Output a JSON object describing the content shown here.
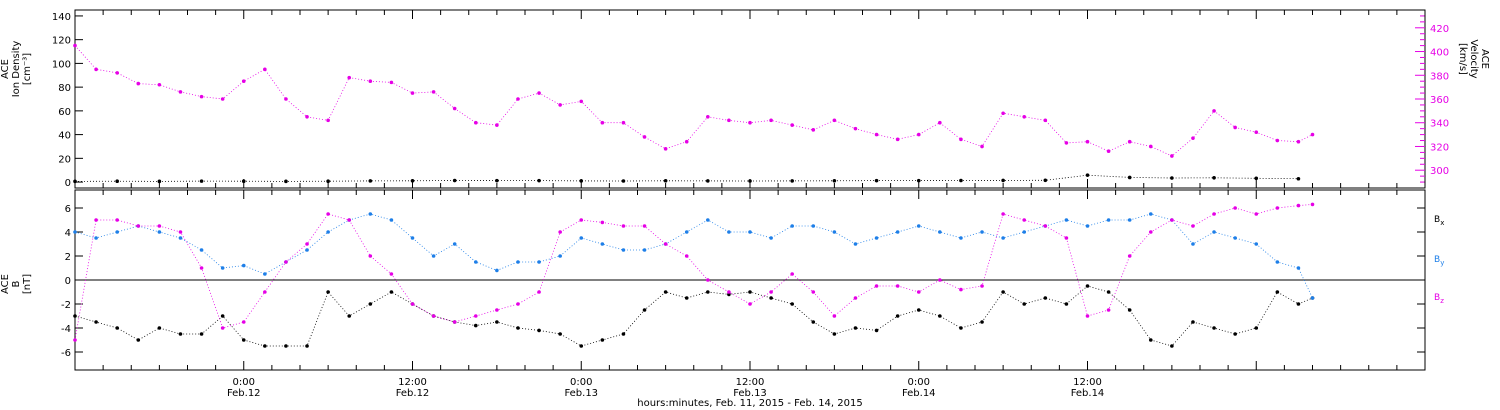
{
  "chart_data": [
    {
      "type": "scatter",
      "title": "",
      "ylabel_lines": [
        "ACE",
        "Ion Density",
        "[cm⁻³]"
      ],
      "y2label_lines": [
        "ACE",
        "Velocity",
        "[km/s]"
      ],
      "ylim": [
        -5,
        145
      ],
      "yticks": [
        0,
        20,
        40,
        60,
        80,
        100,
        120,
        140
      ],
      "y2lim": [
        285,
        435
      ],
      "y2ticks": [
        300,
        320,
        340,
        360,
        380,
        400,
        420
      ],
      "series": [
        {
          "axis": "left",
          "color": "#000000",
          "x_hours": [
            0,
            3,
            6,
            9,
            12,
            15,
            18,
            21,
            24,
            27,
            30,
            33,
            36,
            39,
            42,
            45,
            48,
            51,
            54,
            57,
            60,
            63,
            66,
            69,
            72,
            75,
            78,
            81,
            84,
            87
          ],
          "values": [
            0.6,
            0.7,
            0.6,
            0.8,
            0.7,
            0.6,
            0.7,
            1.0,
            1.1,
            1.3,
            1.2,
            1.2,
            1.0,
            0.9,
            1.1,
            1.0,
            0.9,
            1.0,
            1.1,
            1.2,
            1.2,
            1.3,
            1.4,
            1.5,
            5.8,
            3.9,
            3.4,
            3.6,
            3.2,
            2.8
          ]
        },
        {
          "axis": "right",
          "color": "#e600e6",
          "x_hours": [
            0,
            1.5,
            3,
            4.5,
            6,
            7.5,
            9,
            10.5,
            12,
            13.5,
            15,
            16.5,
            18,
            19.5,
            21,
            22.5,
            24,
            25.5,
            27,
            28.5,
            30,
            31.5,
            33,
            34.5,
            36,
            37.5,
            39,
            40.5,
            42,
            43.5,
            45,
            46.5,
            48,
            49.5,
            51,
            52.5,
            54,
            55.5,
            57,
            58.5,
            60,
            61.5,
            63,
            64.5,
            66,
            67.5,
            69,
            70.5,
            72,
            73.5,
            75,
            76.5,
            78,
            79.5,
            81,
            82.5,
            84,
            85.5,
            87,
            88
          ],
          "values": [
            405,
            385,
            382,
            373,
            372,
            366,
            362,
            360,
            375,
            385,
            360,
            345,
            342,
            378,
            375,
            374,
            365,
            366,
            352,
            340,
            338,
            360,
            365,
            355,
            358,
            340,
            340,
            328,
            318,
            324,
            345,
            342,
            340,
            342,
            338,
            334,
            342,
            335,
            330,
            326,
            330,
            340,
            326,
            320,
            348,
            345,
            342,
            323,
            324,
            316,
            324,
            320,
            312,
            327,
            350,
            336,
            332,
            325,
            324,
            330
          ]
        }
      ]
    },
    {
      "type": "scatter",
      "title": "",
      "ylabel_lines": [
        "ACE",
        "B",
        "[nT]"
      ],
      "ylim": [
        -7.5,
        7.5
      ],
      "yticks": [
        -6,
        -4,
        -2,
        0,
        2,
        4,
        6
      ],
      "zero_line": true,
      "series": [
        {
          "name": "Bx",
          "color": "#000000",
          "x_hours": [
            0,
            1.5,
            3,
            4.5,
            6,
            7.5,
            9,
            10.5,
            12,
            13.5,
            15,
            16.5,
            18,
            19.5,
            21,
            22.5,
            24,
            25.5,
            27,
            28.5,
            30,
            31.5,
            33,
            34.5,
            36,
            37.5,
            39,
            40.5,
            42,
            43.5,
            45,
            46.5,
            48,
            49.5,
            51,
            52.5,
            54,
            55.5,
            57,
            58.5,
            60,
            61.5,
            63,
            64.5,
            66,
            67.5,
            69,
            70.5,
            72,
            73.5,
            75,
            76.5,
            78,
            79.5,
            81,
            82.5,
            84,
            85.5,
            87,
            88
          ],
          "values": [
            -3,
            -3.5,
            -4,
            -5,
            -4,
            -4.5,
            -4.5,
            -3,
            -5,
            -5.5,
            -5.5,
            -5.5,
            -1,
            -3,
            -2,
            -1,
            -2,
            -3,
            -3.5,
            -3.8,
            -3.5,
            -4,
            -4.2,
            -4.5,
            -5.5,
            -5,
            -4.5,
            -2.5,
            -1,
            -1.5,
            -1,
            -1.2,
            -1,
            -1.5,
            -2,
            -3.5,
            -4.5,
            -4,
            -4.2,
            -3,
            -2.5,
            -3,
            -4,
            -3.5,
            -1,
            -2,
            -1.5,
            -2,
            -0.5,
            -1,
            -2.5,
            -5,
            -5.5,
            -3.5,
            -4,
            -4.5,
            -4,
            -1,
            -2,
            -1.5
          ]
        },
        {
          "name": "By",
          "color": "#1e7fe8",
          "x_hours": [
            0,
            1.5,
            3,
            4.5,
            6,
            7.5,
            9,
            10.5,
            12,
            13.5,
            15,
            16.5,
            18,
            19.5,
            21,
            22.5,
            24,
            25.5,
            27,
            28.5,
            30,
            31.5,
            33,
            34.5,
            36,
            37.5,
            39,
            40.5,
            42,
            43.5,
            45,
            46.5,
            48,
            49.5,
            51,
            52.5,
            54,
            55.5,
            57,
            58.5,
            60,
            61.5,
            63,
            64.5,
            66,
            67.5,
            69,
            70.5,
            72,
            73.5,
            75,
            76.5,
            78,
            79.5,
            81,
            82.5,
            84,
            85.5,
            87,
            88
          ],
          "values": [
            4,
            3.5,
            4,
            4.5,
            4,
            3.5,
            2.5,
            1,
            1.2,
            0.5,
            1.5,
            2.5,
            4,
            5,
            5.5,
            5,
            3.5,
            2,
            3,
            1.5,
            0.8,
            1.5,
            1.5,
            2,
            3.5,
            3,
            2.5,
            2.5,
            3,
            4,
            5,
            4,
            4,
            3.5,
            4.5,
            4.5,
            4,
            3,
            3.5,
            4,
            4.5,
            4,
            3.5,
            4,
            3.5,
            4,
            4.5,
            5,
            4.5,
            5,
            5,
            5.5,
            5,
            3,
            4,
            3.5,
            3,
            1.5,
            1,
            -1.5
          ]
        },
        {
          "name": "Bz",
          "color": "#e600e6",
          "x_hours": [
            0,
            1.5,
            3,
            4.5,
            6,
            7.5,
            9,
            10.5,
            12,
            13.5,
            15,
            16.5,
            18,
            19.5,
            21,
            22.5,
            24,
            25.5,
            27,
            28.5,
            30,
            31.5,
            33,
            34.5,
            36,
            37.5,
            39,
            40.5,
            42,
            43.5,
            45,
            46.5,
            48,
            49.5,
            51,
            52.5,
            54,
            55.5,
            57,
            58.5,
            60,
            61.5,
            63,
            64.5,
            66,
            67.5,
            69,
            70.5,
            72,
            73.5,
            75,
            76.5,
            78,
            79.5,
            81,
            82.5,
            84,
            85.5,
            87,
            88
          ],
          "values": [
            -5,
            5,
            5,
            4.5,
            4.5,
            4,
            1,
            -4,
            -3.5,
            -1,
            1.5,
            3,
            5.5,
            5,
            2,
            0.5,
            -2,
            -3,
            -3.5,
            -3,
            -2.5,
            -2,
            -1,
            4,
            5,
            4.8,
            4.5,
            4.5,
            3,
            2,
            0,
            -1,
            -2,
            -1,
            0.5,
            -1,
            -3,
            -1.5,
            -0.5,
            -0.5,
            -1,
            0,
            -0.8,
            -0.5,
            5.5,
            5,
            4.5,
            3.5,
            -3,
            -2.5,
            2,
            4,
            5,
            4.5,
            5.5,
            6,
            5.5,
            6,
            6.2,
            6.3
          ]
        }
      ]
    }
  ],
  "time_axis": {
    "x_range_hours": [
      0,
      96
    ],
    "major_ticks": [
      {
        "hour": 12,
        "time": "0:00",
        "date": "Feb.12"
      },
      {
        "hour": 24,
        "time": "12:00",
        "date": "Feb.12"
      },
      {
        "hour": 36,
        "time": "0:00",
        "date": "Feb.13"
      },
      {
        "hour": 48,
        "time": "12:00",
        "date": "Feb.13"
      },
      {
        "hour": 60,
        "time": "0:00",
        "date": "Feb.14"
      },
      {
        "hour": 72,
        "time": "12:00",
        "date": "Feb.14"
      }
    ],
    "xlabel": "hours:minutes, Feb. 11, 2015 - Feb. 14, 2015"
  },
  "legend": {
    "placement": "right",
    "entries": [
      {
        "base": "B",
        "sub": "x",
        "color": "#000000"
      },
      {
        "base": "B",
        "sub": "y",
        "color": "#1e7fe8"
      },
      {
        "base": "B",
        "sub": "z",
        "color": "#e600e6"
      }
    ]
  },
  "colors": {
    "velocity_axis": "#e600e6",
    "frame": "#000000"
  }
}
